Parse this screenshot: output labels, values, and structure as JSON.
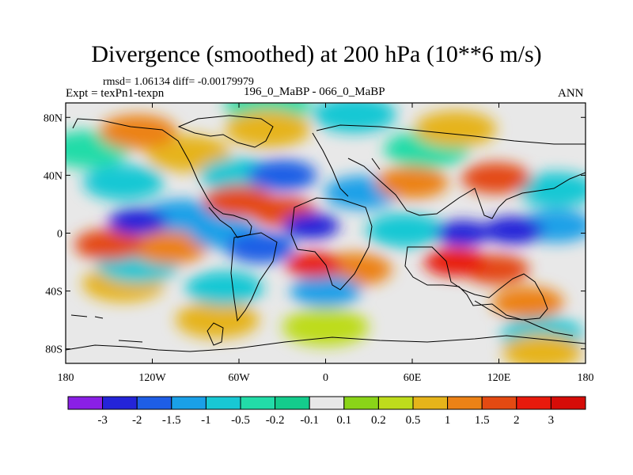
{
  "header": {
    "title": "Divergence (smoothed) at 200 hPa (10**6 m/s)",
    "stats": "rmsd= 1.06134 diff= -0.00179979",
    "expt": "Expt = texPn1-texpn",
    "cases": "196_0_MaBP - 066_0_MaBP",
    "season": "ANN"
  },
  "chart_data": {
    "type": "heatmap",
    "title": "Divergence (smoothed) at 200 hPa (10**6 m/s)",
    "xlim": [
      -180,
      180
    ],
    "ylim": [
      -90,
      90
    ],
    "x_ticks": [
      {
        "value": -180,
        "label": "180"
      },
      {
        "value": -120,
        "label": "120W"
      },
      {
        "value": -60,
        "label": "60W"
      },
      {
        "value": 0,
        "label": "0"
      },
      {
        "value": 60,
        "label": "60E"
      },
      {
        "value": 120,
        "label": "120E"
      },
      {
        "value": 180,
        "label": "180"
      }
    ],
    "y_ticks": [
      {
        "value": 80,
        "label": "80N"
      },
      {
        "value": 40,
        "label": "40N"
      },
      {
        "value": 0,
        "label": "0"
      },
      {
        "value": -40,
        "label": "40S"
      },
      {
        "value": -80,
        "label": "80S"
      }
    ],
    "colorbar": {
      "levels": [
        "-3",
        "-2",
        "-1.5",
        "-1",
        "-0.5",
        "-0.2",
        "-0.1",
        "0.1",
        "0.2",
        "0.5",
        "1",
        "1.5",
        "2",
        "3"
      ],
      "colors": [
        "#8a1fe6",
        "#2424d8",
        "#1e5ee6",
        "#1aa0e8",
        "#18c8d4",
        "#22dca8",
        "#14cc8c",
        "#e8e8e8",
        "#8ad418",
        "#bedc1c",
        "#e6b41a",
        "#ec8216",
        "#e44a12",
        "#e81a0c",
        "#d60c08"
      ]
    },
    "regions": [
      {
        "lon": 150,
        "lat": -82,
        "value": 0.9
      },
      {
        "lon": -108,
        "lat": -10,
        "value": 1.2
      },
      {
        "lon": -150,
        "lat": -8,
        "value": 1.6
      },
      {
        "lon": -140,
        "lat": -35,
        "value": 0.7
      },
      {
        "lon": -75,
        "lat": -60,
        "value": 0.6
      },
      {
        "lon": 60,
        "lat": 35,
        "value": 1.4
      },
      {
        "lon": 118,
        "lat": 38,
        "value": 1.6
      },
      {
        "lon": -30,
        "lat": 15,
        "value": 1.8
      },
      {
        "lon": -60,
        "lat": 22,
        "value": 1.5
      },
      {
        "lon": -8,
        "lat": -22,
        "value": 2.5
      },
      {
        "lon": 20,
        "lat": -25,
        "value": 1.2
      },
      {
        "lon": 90,
        "lat": -20,
        "value": 2.0
      },
      {
        "lon": 118,
        "lat": -25,
        "value": 1.8
      },
      {
        "lon": 140,
        "lat": -48,
        "value": 1.4
      },
      {
        "lon": -130,
        "lat": 70,
        "value": 1.0
      },
      {
        "lon": -40,
        "lat": 72,
        "value": 0.5
      },
      {
        "lon": 90,
        "lat": 72,
        "value": 0.7
      },
      {
        "lon": 0,
        "lat": -65,
        "value": 0.4
      },
      {
        "lon": -95,
        "lat": 55,
        "value": 0.6
      },
      {
        "lon": -100,
        "lat": 12,
        "value": -1.3
      },
      {
        "lon": -130,
        "lat": 8,
        "value": -2.3
      },
      {
        "lon": -140,
        "lat": 35,
        "value": -0.8
      },
      {
        "lon": -130,
        "lat": -22,
        "value": -0.7
      },
      {
        "lon": -70,
        "lat": 0,
        "value": -1.5
      },
      {
        "lon": -45,
        "lat": -10,
        "value": -1.6
      },
      {
        "lon": -10,
        "lat": 5,
        "value": -2.5
      },
      {
        "lon": 0,
        "lat": -40,
        "value": -1.5
      },
      {
        "lon": -30,
        "lat": 40,
        "value": -1.6
      },
      {
        "lon": -60,
        "lat": 40,
        "value": -1.0
      },
      {
        "lon": 25,
        "lat": 28,
        "value": -1.2
      },
      {
        "lon": 95,
        "lat": 0,
        "value": -2.6
      },
      {
        "lon": 130,
        "lat": 2,
        "value": -2.2
      },
      {
        "lon": 55,
        "lat": 2,
        "value": -1.0
      },
      {
        "lon": 160,
        "lat": 5,
        "value": -1.3
      },
      {
        "lon": 160,
        "lat": 30,
        "value": -0.9
      },
      {
        "lon": -70,
        "lat": -38,
        "value": -1.0
      },
      {
        "lon": -40,
        "lat": 88,
        "value": -0.4
      },
      {
        "lon": 20,
        "lat": 82,
        "value": -0.6
      },
      {
        "lon": 150,
        "lat": -70,
        "value": -0.7
      },
      {
        "lon": 70,
        "lat": 58,
        "value": -0.5
      },
      {
        "lon": -165,
        "lat": 58,
        "value": -0.5
      }
    ]
  }
}
